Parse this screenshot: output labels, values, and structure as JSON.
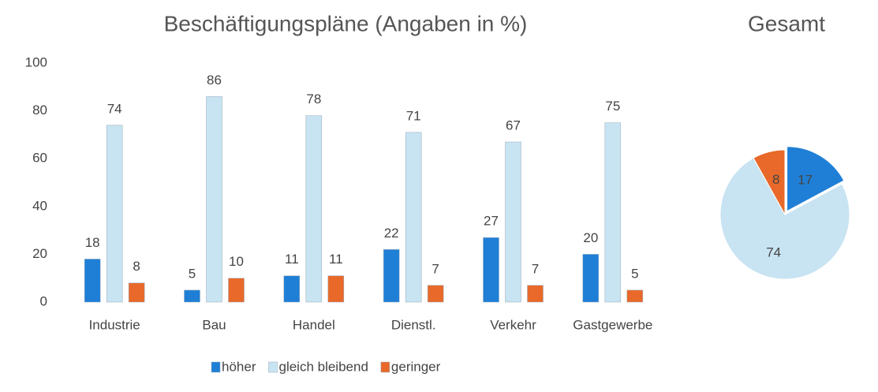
{
  "chart_data": [
    {
      "type": "bar",
      "title": "Beschäftigungspläne (Angaben in %)",
      "categories": [
        "Industrie",
        "Bau",
        "Handel",
        "Dienstl.",
        "Verkehr",
        "Gastgewerbe"
      ],
      "series": [
        {
          "name": "höher",
          "color": "#1f7fd6",
          "values": [
            18,
            5,
            11,
            22,
            27,
            20
          ]
        },
        {
          "name": "gleich bleibend",
          "color": "#c8e3f1",
          "values": [
            74,
            86,
            78,
            71,
            67,
            75
          ]
        },
        {
          "name": "geringer",
          "color": "#e8692a",
          "values": [
            8,
            10,
            11,
            7,
            7,
            5
          ]
        }
      ],
      "ylim": [
        0,
        100
      ],
      "yticks": [
        0,
        20,
        40,
        60,
        80,
        100
      ],
      "grid": false,
      "legend": "bottom"
    },
    {
      "type": "pie",
      "title": "Gesamt",
      "values": [
        17,
        74,
        8
      ],
      "colors": [
        "#1f7fd6",
        "#c8e3f1",
        "#e8692a"
      ]
    }
  ]
}
